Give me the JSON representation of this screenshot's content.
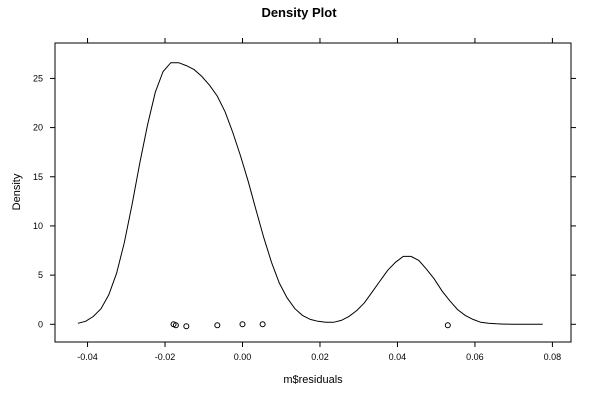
{
  "chart_data": {
    "type": "line",
    "title": "Density Plot",
    "xlabel": "m$residuals",
    "ylabel": "Density",
    "xlim": [
      -0.0484,
      0.0848
    ],
    "ylim": [
      -1.8,
      28.6
    ],
    "x_ticks": [
      -0.04,
      -0.02,
      0.0,
      0.02,
      0.04,
      0.06,
      0.08
    ],
    "x_tick_labels": [
      "-0.04",
      "-0.02",
      "0.00",
      "0.02",
      "0.04",
      "0.06",
      "0.08"
    ],
    "y_ticks": [
      0,
      5,
      10,
      15,
      20,
      25
    ],
    "y_tick_labels": [
      "0",
      "5",
      "10",
      "15",
      "20",
      "25"
    ],
    "grid": false,
    "series": [
      {
        "style": "line",
        "x": [
          -0.0425,
          -0.0405,
          -0.0385,
          -0.0365,
          -0.0345,
          -0.0325,
          -0.0305,
          -0.0285,
          -0.0265,
          -0.0245,
          -0.0225,
          -0.0205,
          -0.0185,
          -0.0165,
          -0.0145,
          -0.0125,
          -0.0105,
          -0.0085,
          -0.0065,
          -0.0045,
          -0.0025,
          -0.0005,
          0.0015,
          0.0035,
          0.0055,
          0.0075,
          0.0095,
          0.0115,
          0.0135,
          0.0155,
          0.0175,
          0.0195,
          0.0215,
          0.0235,
          0.0255,
          0.0275,
          0.0295,
          0.0315,
          0.0335,
          0.0355,
          0.0375,
          0.0395,
          0.0415,
          0.0435,
          0.0455,
          0.0475,
          0.0495,
          0.0515,
          0.0535,
          0.0555,
          0.0575,
          0.0595,
          0.0615,
          0.0635,
          0.0655,
          0.0675,
          0.0695,
          0.0715,
          0.0735,
          0.0755,
          0.0775
        ],
        "y": [
          0.1,
          0.3,
          0.8,
          1.6,
          3.0,
          5.2,
          8.3,
          12.2,
          16.4,
          20.3,
          23.6,
          25.7,
          26.6,
          26.6,
          26.3,
          25.9,
          25.2,
          24.3,
          23.2,
          21.6,
          19.5,
          17.1,
          14.5,
          11.6,
          8.8,
          6.3,
          4.2,
          2.7,
          1.6,
          0.9,
          0.5,
          0.3,
          0.2,
          0.2,
          0.4,
          0.8,
          1.4,
          2.2,
          3.3,
          4.4,
          5.5,
          6.3,
          6.9,
          6.9,
          6.5,
          5.6,
          4.6,
          3.4,
          2.4,
          1.5,
          0.9,
          0.5,
          0.2,
          0.1,
          0.05,
          0.02,
          0.01,
          0.0,
          0.0,
          0.0,
          0.0
        ]
      },
      {
        "style": "points",
        "x": [
          -0.0178,
          -0.0172,
          -0.0145,
          -0.0065,
          0.0,
          0.0052,
          0.053
        ],
        "y": [
          0.0,
          -0.1,
          -0.2,
          -0.1,
          0.0,
          0.0,
          -0.1
        ]
      }
    ]
  }
}
